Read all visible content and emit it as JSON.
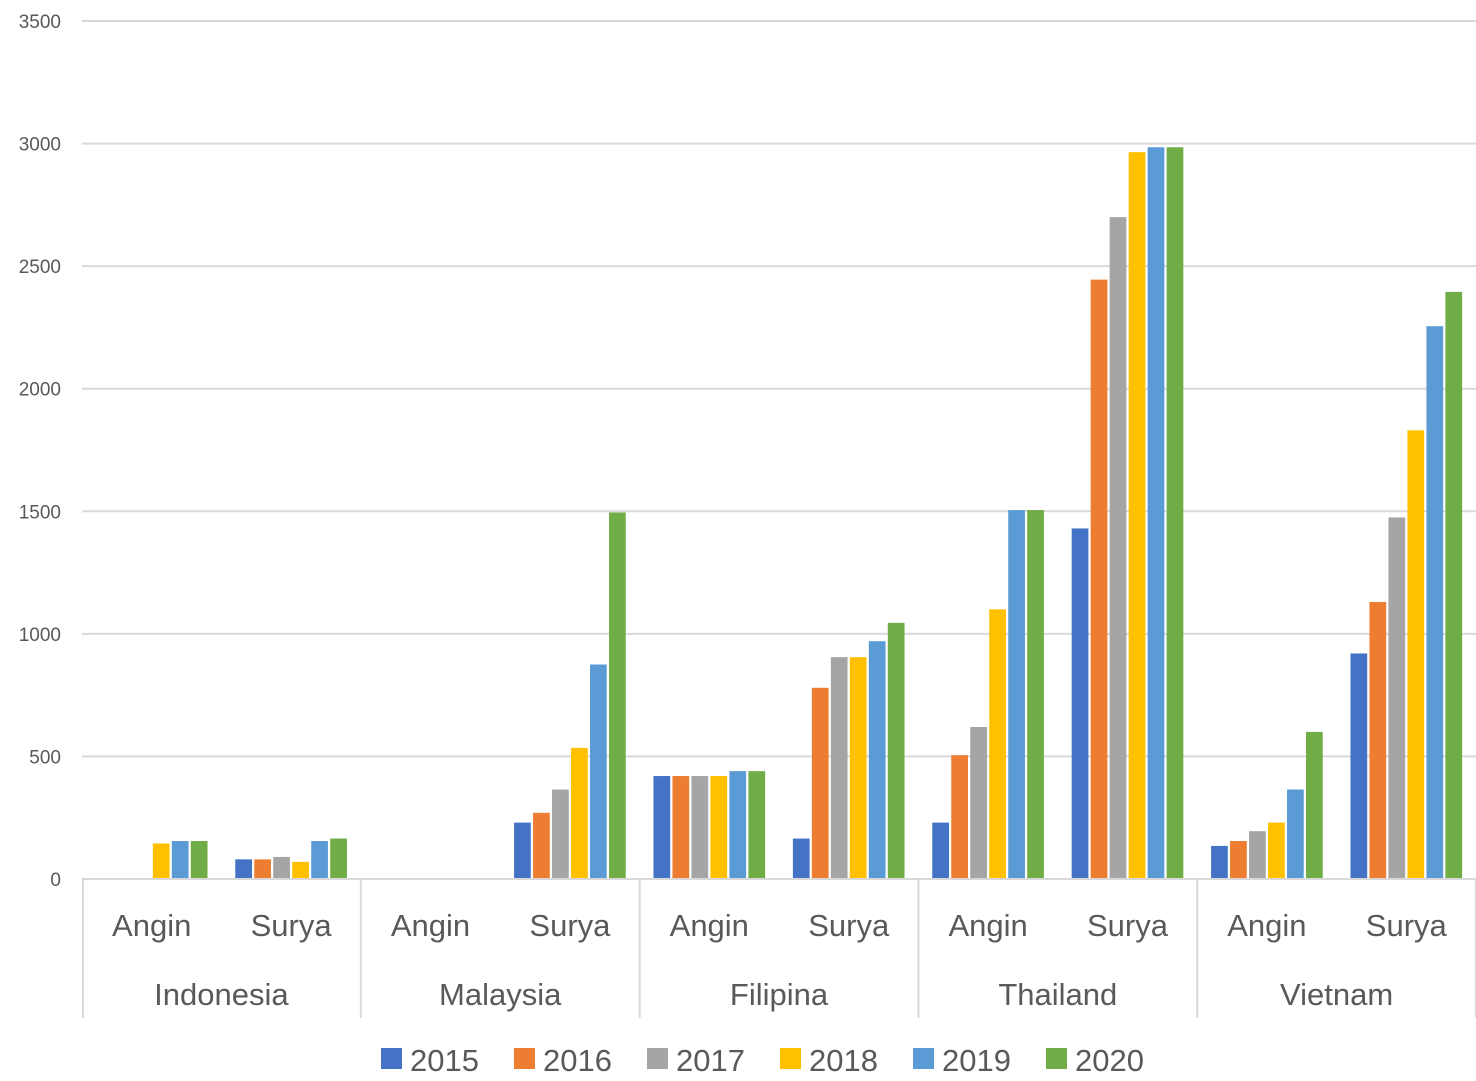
{
  "chart_data": {
    "type": "bar",
    "title": "",
    "xlabel": "",
    "ylabel": "",
    "ylim": [
      0,
      3500
    ],
    "yticks": [
      0,
      500,
      1000,
      1500,
      2000,
      2500,
      3000,
      3500
    ],
    "ytick_labels": [
      "0",
      "500",
      "1000",
      "1500",
      "2000",
      "2500",
      "3000",
      "3500"
    ],
    "grid": true,
    "legend_position": "bottom",
    "groups": [
      {
        "name": "Indonesia",
        "subcategories": [
          "Angin",
          "Surya"
        ]
      },
      {
        "name": "Malaysia",
        "subcategories": [
          "Angin",
          "Surya"
        ]
      },
      {
        "name": "Filipina",
        "subcategories": [
          "Angin",
          "Surya"
        ]
      },
      {
        "name": "Thailand",
        "subcategories": [
          "Angin",
          "Surya"
        ]
      },
      {
        "name": "Vietnam",
        "subcategories": [
          "Angin",
          "Surya"
        ]
      }
    ],
    "series": [
      {
        "name": "2015",
        "color": "#4472C4",
        "values": [
          2,
          80,
          0,
          230,
          420,
          165,
          230,
          1430,
          135,
          920
        ]
      },
      {
        "name": "2016",
        "color": "#ED7D31",
        "values": [
          2,
          80,
          0,
          270,
          420,
          780,
          505,
          2445,
          155,
          1130
        ]
      },
      {
        "name": "2017",
        "color": "#A5A5A5",
        "values": [
          2,
          90,
          0,
          365,
          420,
          905,
          620,
          2700,
          195,
          1475
        ]
      },
      {
        "name": "2018",
        "color": "#FFC000",
        "values": [
          145,
          70,
          0,
          535,
          420,
          905,
          1100,
          2965,
          230,
          1830
        ]
      },
      {
        "name": "2019",
        "color": "#5B9BD5",
        "values": [
          155,
          155,
          0,
          875,
          440,
          970,
          1505,
          2985,
          365,
          2255
        ]
      },
      {
        "name": "2020",
        "color": "#70AD47",
        "values": [
          155,
          165,
          0,
          1495,
          440,
          1045,
          1505,
          2985,
          600,
          2395
        ]
      }
    ]
  }
}
